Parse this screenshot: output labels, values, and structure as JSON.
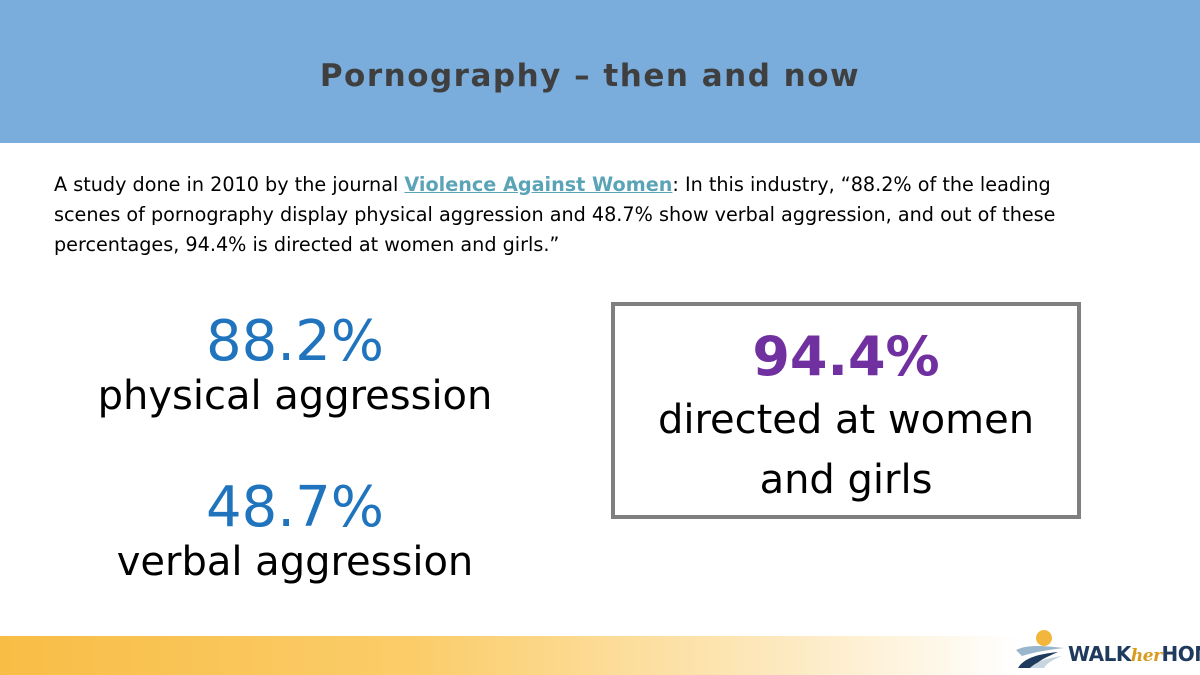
{
  "header": {
    "title": "Pornography – then and now",
    "color": "#7aaddc"
  },
  "intro": {
    "prefix": "A study done in 2010 by the journal ",
    "journal_link": "Violence Against Women",
    "suffix": ": In this industry, “88.2% of the leading scenes of pornography display physical aggression and 48.7% show verbal aggression, and out of these percentages, 94.4% is directed at women and girls.”"
  },
  "stats": {
    "physical": {
      "value": "88.2%",
      "label": "physical aggression"
    },
    "verbal": {
      "value": "48.7%",
      "label": "verbal aggression"
    },
    "directed": {
      "value": "94.4%",
      "label": "directed at women and girls"
    }
  },
  "colors": {
    "stat_blue": "#1f74bd",
    "highlight_purple": "#7030a0",
    "link_teal": "#5ba4b8",
    "footer_gold": "#f8bd45"
  },
  "logo": {
    "text_walk": "WALK",
    "text_her": "her",
    "text_home": "HOME",
    "icon": "sun-over-path-icon"
  }
}
